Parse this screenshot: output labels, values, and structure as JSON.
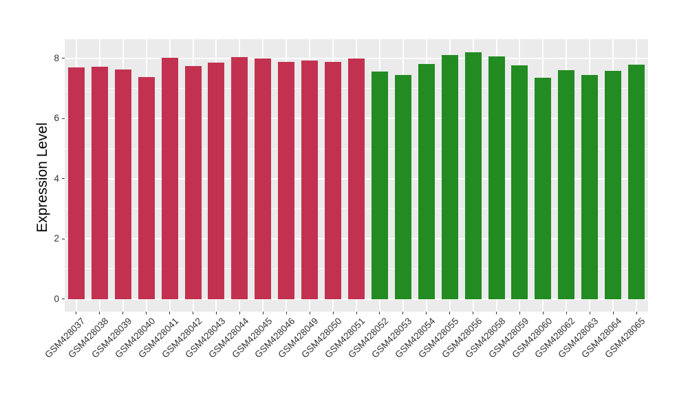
{
  "chart_data": {
    "type": "bar",
    "title": "",
    "xlabel": "",
    "ylabel": "Expression Level",
    "ylim": [
      -0.41,
      8.61
    ],
    "yticks": [
      0,
      2,
      4,
      6,
      8
    ],
    "ytick_labels": [
      "0",
      "2",
      "4",
      "6",
      "8"
    ],
    "yticks_minor": [
      1,
      3,
      5,
      7
    ],
    "grid": "major white + minor white horizontal, major white vertical, on gray panel",
    "legend_position": "none",
    "panel_bg": "#EBEBEB",
    "gridline_color": "#FFFFFF",
    "tick_color": "#333333",
    "axis_text_color": "#333333",
    "axis_title_color": "#000000",
    "groups": {
      "red": "#C23250",
      "green": "#228B22"
    },
    "categories": [
      "GSM428037",
      "GSM428038",
      "GSM428039",
      "GSM428040",
      "GSM428041",
      "GSM428042",
      "GSM428043",
      "GSM428044",
      "GSM428045",
      "GSM428046",
      "GSM428049",
      "GSM428050",
      "GSM428051",
      "GSM428052",
      "GSM428053",
      "GSM428054",
      "GSM428055",
      "GSM428056",
      "GSM428058",
      "GSM428059",
      "GSM428060",
      "GSM428062",
      "GSM428063",
      "GSM428064",
      "GSM428065"
    ],
    "bars": [
      {
        "label": "GSM428037",
        "value": 7.69,
        "group": "red"
      },
      {
        "label": "GSM428038",
        "value": 7.72,
        "group": "red"
      },
      {
        "label": "GSM428039",
        "value": 7.64,
        "group": "red"
      },
      {
        "label": "GSM428040",
        "value": 7.37,
        "group": "red"
      },
      {
        "label": "GSM428041",
        "value": 8.02,
        "group": "red"
      },
      {
        "label": "GSM428042",
        "value": 7.75,
        "group": "red"
      },
      {
        "label": "GSM428043",
        "value": 7.86,
        "group": "red"
      },
      {
        "label": "GSM428044",
        "value": 8.04,
        "group": "red"
      },
      {
        "label": "GSM428045",
        "value": 7.99,
        "group": "red"
      },
      {
        "label": "GSM428046",
        "value": 7.88,
        "group": "red"
      },
      {
        "label": "GSM428049",
        "value": 7.92,
        "group": "red"
      },
      {
        "label": "GSM428050",
        "value": 7.89,
        "group": "red"
      },
      {
        "label": "GSM428051",
        "value": 8.0,
        "group": "red"
      },
      {
        "label": "GSM428052",
        "value": 7.57,
        "group": "green"
      },
      {
        "label": "GSM428053",
        "value": 7.44,
        "group": "green"
      },
      {
        "label": "GSM428054",
        "value": 7.82,
        "group": "green"
      },
      {
        "label": "GSM428055",
        "value": 8.11,
        "group": "green"
      },
      {
        "label": "GSM428056",
        "value": 8.2,
        "group": "green"
      },
      {
        "label": "GSM428058",
        "value": 8.06,
        "group": "green"
      },
      {
        "label": "GSM428059",
        "value": 7.78,
        "group": "green"
      },
      {
        "label": "GSM428060",
        "value": 7.36,
        "group": "green"
      },
      {
        "label": "GSM428062",
        "value": 7.61,
        "group": "green"
      },
      {
        "label": "GSM428063",
        "value": 7.45,
        "group": "green"
      },
      {
        "label": "GSM428064",
        "value": 7.59,
        "group": "green"
      },
      {
        "label": "GSM428065",
        "value": 7.8,
        "group": "green"
      }
    ]
  }
}
